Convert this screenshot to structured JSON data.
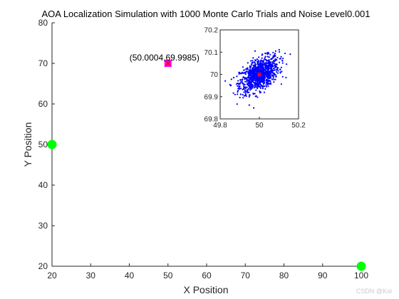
{
  "chart_data": [
    {
      "type": "scatter",
      "title": "AOA Localization Simulation with 1000 Monte Carlo Trials and Noise Level0.001",
      "xlabel": "X Position",
      "ylabel": "Y Position",
      "xlim": [
        20,
        100
      ],
      "ylim": [
        20,
        80
      ],
      "xticks": [
        "20",
        "30",
        "40",
        "50",
        "60",
        "70",
        "80",
        "90",
        "100"
      ],
      "yticks": [
        "20",
        "30",
        "40",
        "50",
        "60",
        "70",
        "80"
      ],
      "grid": false,
      "series": [
        {
          "role": "anchors",
          "color": "#00ff00",
          "marker": "circle",
          "points": [
            [
              20,
              50
            ],
            [
              100,
              20
            ]
          ]
        },
        {
          "role": "estimate",
          "color": "#ff00ff",
          "marker": "square",
          "points": [
            [
              50.0004,
              69.9985
            ]
          ]
        },
        {
          "role": "true-position",
          "color": "#ff0000",
          "marker": "x",
          "points": [
            [
              50,
              70
            ]
          ]
        }
      ],
      "annotation": {
        "text": "(50.0004,69.9985)",
        "x": 50.0004,
        "y": 69.9985
      }
    },
    {
      "type": "scatter",
      "xlim": [
        49.8,
        50.2
      ],
      "ylim": [
        69.8,
        70.2
      ],
      "xticks": [
        "49.8",
        "50",
        "50.2"
      ],
      "yticks": [
        "69.8",
        "69.9",
        "70",
        "70.1",
        "70.2"
      ],
      "trials": 1000,
      "center": [
        50,
        70
      ],
      "spread": {
        "sx": 0.05,
        "sy": 0.04,
        "correlation": 0.5
      },
      "colors": {
        "samples": "#0000ff",
        "center": "#ff0000"
      }
    }
  ],
  "watermark": "CSDN @Koi"
}
